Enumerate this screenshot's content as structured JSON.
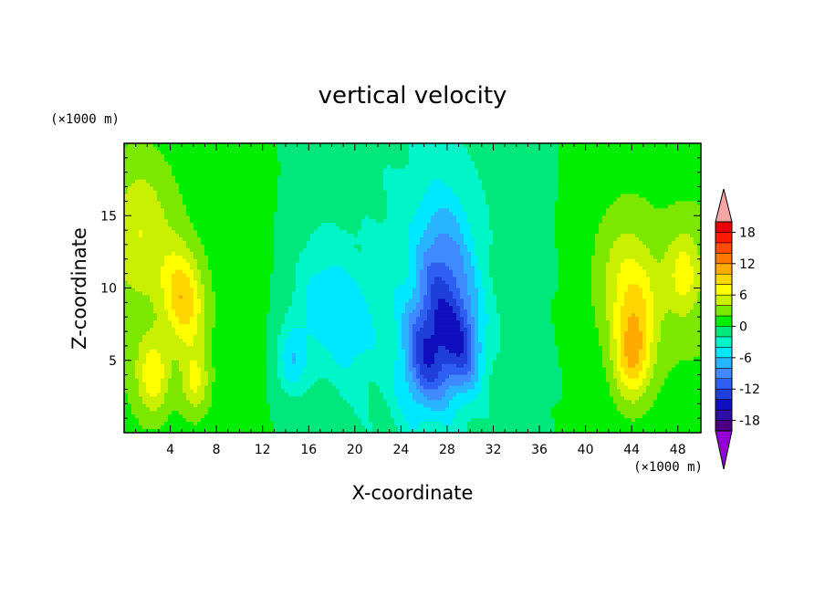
{
  "chart_data": {
    "type": "heatmap",
    "title": "vertical velocity",
    "xlabel": "X-coordinate",
    "ylabel": "Z-coordinate",
    "x_unit": "(×1000 m)",
    "y_unit": "(×1000 m)",
    "xlim": [
      0,
      50
    ],
    "ylim": [
      0,
      20
    ],
    "x_ticks": [
      4,
      8,
      12,
      16,
      20,
      24,
      28,
      32,
      36,
      40,
      44,
      48
    ],
    "y_ticks": [
      5,
      10,
      15
    ],
    "colorbar": {
      "levels": [
        -20,
        -18,
        -16,
        -14,
        -12,
        -10,
        -8,
        -6,
        -4,
        -2,
        0,
        2,
        4,
        6,
        8,
        10,
        12,
        14,
        16,
        18,
        20
      ],
      "tick_labels": [
        "18",
        "12",
        "6",
        "0",
        "-6",
        "-12",
        "-18"
      ],
      "tick_values": [
        18,
        12,
        6,
        0,
        -6,
        -12,
        -18
      ],
      "extend": "both",
      "colors": [
        "#4b0082",
        "#2e0fa3",
        "#0f0fbe",
        "#1f3fd9",
        "#2f5ff2",
        "#3f8aff",
        "#28b4ff",
        "#00e8ff",
        "#00f5c8",
        "#00e87c",
        "#00ee00",
        "#7ce800",
        "#c8f000",
        "#ffff00",
        "#ffd700",
        "#ffaa00",
        "#ff7a00",
        "#ff4d00",
        "#ff1a00",
        "#e60000"
      ],
      "over_color": "#f5a5a5",
      "under_color": "#9400d3"
    },
    "features": [
      {
        "x": 2.5,
        "z": 4.0,
        "w": 1.4,
        "amp": 6
      },
      {
        "x": 4.5,
        "z": 10.5,
        "w": 1.5,
        "amp": 4
      },
      {
        "x": 5.5,
        "z": 8.5,
        "w": 1.6,
        "amp": 6
      },
      {
        "x": 6.2,
        "z": 3.5,
        "w": 1.2,
        "amp": 5
      },
      {
        "x": 1.5,
        "z": 14.0,
        "w": 2.5,
        "amp": 4
      },
      {
        "x": 14.5,
        "z": 5.0,
        "w": 1.3,
        "amp": -5
      },
      {
        "x": 17.0,
        "z": 9.0,
        "w": 2.5,
        "amp": -4
      },
      {
        "x": 20.0,
        "z": 7.0,
        "w": 2.0,
        "amp": -3
      },
      {
        "x": 26.0,
        "z": 5.0,
        "w": 2.0,
        "amp": -8
      },
      {
        "x": 28.0,
        "z": 8.0,
        "w": 2.5,
        "amp": -8
      },
      {
        "x": 29.5,
        "z": 5.5,
        "w": 1.6,
        "amp": -6
      },
      {
        "x": 27.5,
        "z": 13.0,
        "w": 2.5,
        "amp": -4
      },
      {
        "x": 44.0,
        "z": 5.0,
        "w": 1.5,
        "amp": 7
      },
      {
        "x": 44.5,
        "z": 8.5,
        "w": 2.0,
        "amp": 5
      },
      {
        "x": 43.0,
        "z": 11.0,
        "w": 2.5,
        "amp": 3
      },
      {
        "x": 48.5,
        "z": 11.0,
        "w": 1.5,
        "amp": 5
      }
    ]
  }
}
